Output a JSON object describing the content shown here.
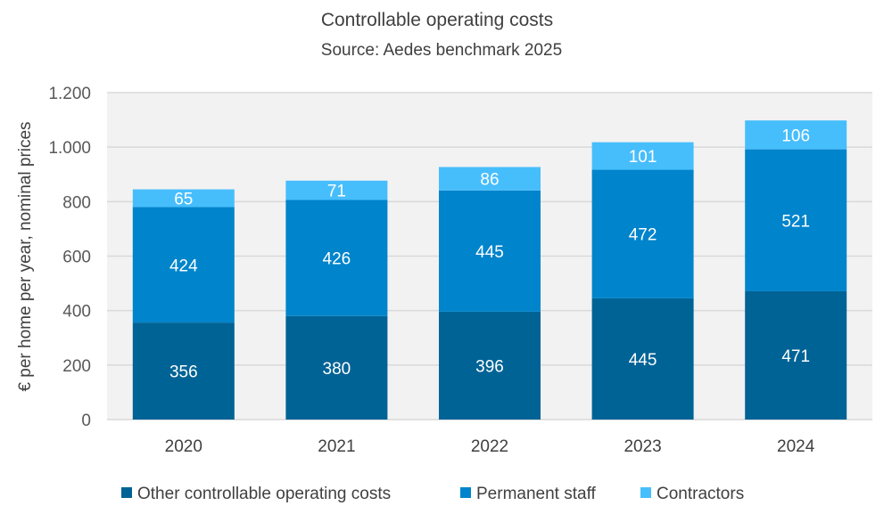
{
  "chart_data": {
    "type": "bar",
    "stacked": true,
    "title": "Controllable operating costs",
    "subtitle": "Source: Aedes benchmark 2025",
    "xlabel": "",
    "ylabel": "€ per home per year, nominal prices",
    "ylim": [
      0,
      1200
    ],
    "yticks": [
      0,
      200,
      400,
      600,
      800,
      1000,
      1200
    ],
    "ytick_labels": [
      "0",
      "200",
      "400",
      "600",
      "800",
      "1.000",
      "1.200"
    ],
    "grid": true,
    "legend_position": "bottom",
    "categories": [
      "2020",
      "2021",
      "2022",
      "2023",
      "2024"
    ],
    "series": [
      {
        "name": "Other controllable operating costs",
        "color": "#006396",
        "values": [
          356,
          380,
          396,
          445,
          471
        ]
      },
      {
        "name": "Permanent staff",
        "color": "#0084CB",
        "values": [
          424,
          426,
          445,
          472,
          521
        ]
      },
      {
        "name": "Contractors",
        "color": "#47BEFC",
        "values": [
          65,
          71,
          86,
          101,
          106
        ]
      }
    ]
  }
}
